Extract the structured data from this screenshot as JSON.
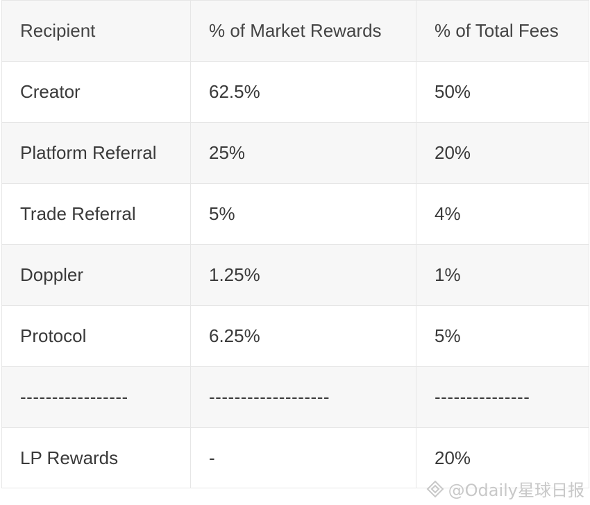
{
  "table": {
    "headers": [
      "Recipient",
      "% of Market Rewards",
      "% of Total Fees"
    ],
    "rows": [
      [
        "Creator",
        "62.5%",
        "50%"
      ],
      [
        "Platform Referral",
        "25%",
        "20%"
      ],
      [
        "Trade Referral",
        "5%",
        "4%"
      ],
      [
        "Doppler",
        "1.25%",
        "1%"
      ],
      [
        "Protocol",
        "6.25%",
        "5%"
      ],
      [
        "-----------------",
        "-------------------",
        "---------------"
      ],
      [
        "LP Rewards",
        "-",
        "20%"
      ]
    ]
  },
  "watermark": {
    "text": "@Odaily星球日报",
    "icon": "odaily-logo-icon"
  }
}
